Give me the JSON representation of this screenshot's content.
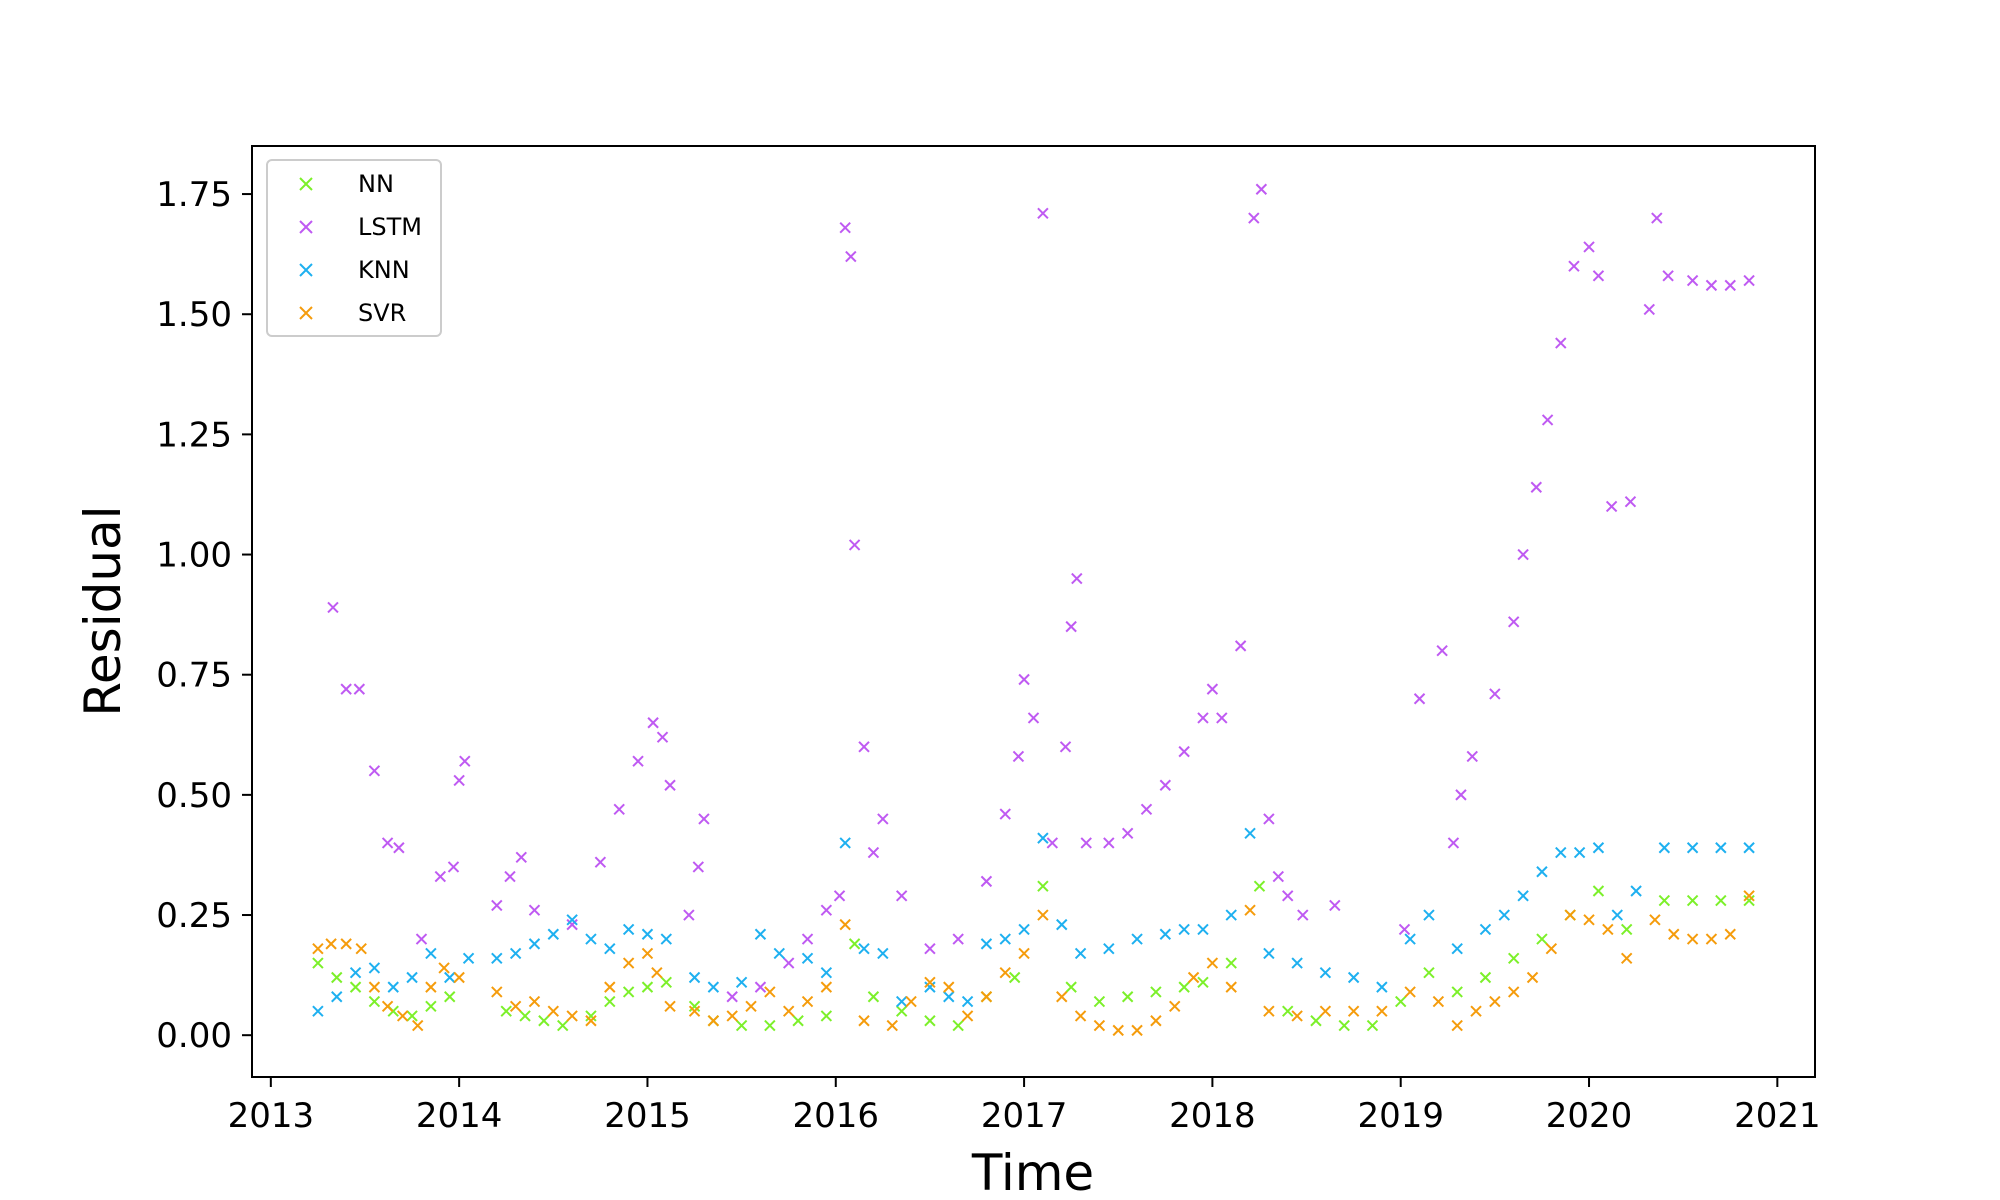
{
  "chart_data": {
    "type": "scatter",
    "title": "",
    "xlabel": "Time",
    "ylabel": "Residual",
    "xlim": [
      2012.9,
      2021.2
    ],
    "ylim": [
      -0.087,
      1.85
    ],
    "x_ticks": [
      2013,
      2014,
      2015,
      2016,
      2017,
      2018,
      2019,
      2020,
      2021
    ],
    "x_tick_labels": [
      "2013",
      "2014",
      "2015",
      "2016",
      "2017",
      "2018",
      "2019",
      "2020",
      "2021"
    ],
    "y_ticks": [
      0.0,
      0.25,
      0.5,
      0.75,
      1.0,
      1.25,
      1.5,
      1.75
    ],
    "y_tick_labels": [
      "0.00",
      "0.25",
      "0.50",
      "0.75",
      "1.00",
      "1.25",
      "1.50",
      "1.75"
    ],
    "grid": false,
    "legend_position": "top-left",
    "marker": "x",
    "series": [
      {
        "name": "NN",
        "color": "#7cf02a",
        "points": [
          [
            2013.25,
            0.15
          ],
          [
            2013.35,
            0.12
          ],
          [
            2013.45,
            0.1
          ],
          [
            2013.55,
            0.07
          ],
          [
            2013.65,
            0.05
          ],
          [
            2013.75,
            0.04
          ],
          [
            2013.85,
            0.06
          ],
          [
            2013.95,
            0.08
          ],
          [
            2014.25,
            0.05
          ],
          [
            2014.35,
            0.04
          ],
          [
            2014.45,
            0.03
          ],
          [
            2014.55,
            0.02
          ],
          [
            2014.7,
            0.04
          ],
          [
            2014.8,
            0.07
          ],
          [
            2014.9,
            0.09
          ],
          [
            2015.0,
            0.1
          ],
          [
            2015.1,
            0.11
          ],
          [
            2015.25,
            0.06
          ],
          [
            2015.35,
            0.03
          ],
          [
            2015.5,
            0.02
          ],
          [
            2015.65,
            0.02
          ],
          [
            2015.8,
            0.03
          ],
          [
            2015.95,
            0.04
          ],
          [
            2016.1,
            0.19
          ],
          [
            2016.2,
            0.08
          ],
          [
            2016.35,
            0.05
          ],
          [
            2016.5,
            0.03
          ],
          [
            2016.65,
            0.02
          ],
          [
            2016.8,
            0.08
          ],
          [
            2016.95,
            0.12
          ],
          [
            2017.1,
            0.31
          ],
          [
            2017.25,
            0.1
          ],
          [
            2017.4,
            0.07
          ],
          [
            2017.55,
            0.08
          ],
          [
            2017.7,
            0.09
          ],
          [
            2017.85,
            0.1
          ],
          [
            2017.95,
            0.11
          ],
          [
            2018.1,
            0.15
          ],
          [
            2018.25,
            0.31
          ],
          [
            2018.4,
            0.05
          ],
          [
            2018.55,
            0.03
          ],
          [
            2018.7,
            0.02
          ],
          [
            2018.85,
            0.02
          ],
          [
            2019.0,
            0.07
          ],
          [
            2019.15,
            0.13
          ],
          [
            2019.3,
            0.09
          ],
          [
            2019.45,
            0.12
          ],
          [
            2019.6,
            0.16
          ],
          [
            2019.75,
            0.2
          ],
          [
            2019.9,
            0.25
          ],
          [
            2020.05,
            0.3
          ],
          [
            2020.2,
            0.22
          ],
          [
            2020.4,
            0.28
          ],
          [
            2020.55,
            0.28
          ],
          [
            2020.7,
            0.28
          ],
          [
            2020.85,
            0.28
          ]
        ]
      },
      {
        "name": "LSTM",
        "color": "#bf5af2",
        "points": [
          [
            2013.33,
            0.89
          ],
          [
            2013.4,
            0.72
          ],
          [
            2013.47,
            0.72
          ],
          [
            2013.55,
            0.55
          ],
          [
            2013.62,
            0.4
          ],
          [
            2013.68,
            0.39
          ],
          [
            2013.8,
            0.2
          ],
          [
            2013.9,
            0.33
          ],
          [
            2013.97,
            0.35
          ],
          [
            2014.0,
            0.53
          ],
          [
            2014.03,
            0.57
          ],
          [
            2014.2,
            0.27
          ],
          [
            2014.27,
            0.33
          ],
          [
            2014.33,
            0.37
          ],
          [
            2014.4,
            0.26
          ],
          [
            2014.6,
            0.23
          ],
          [
            2014.75,
            0.36
          ],
          [
            2014.85,
            0.47
          ],
          [
            2014.95,
            0.57
          ],
          [
            2015.03,
            0.65
          ],
          [
            2015.08,
            0.62
          ],
          [
            2015.12,
            0.52
          ],
          [
            2015.22,
            0.25
          ],
          [
            2015.27,
            0.35
          ],
          [
            2015.3,
            0.45
          ],
          [
            2015.45,
            0.08
          ],
          [
            2015.6,
            0.1
          ],
          [
            2015.75,
            0.15
          ],
          [
            2015.85,
            0.2
          ],
          [
            2015.95,
            0.26
          ],
          [
            2016.02,
            0.29
          ],
          [
            2016.05,
            1.68
          ],
          [
            2016.08,
            1.62
          ],
          [
            2016.1,
            1.02
          ],
          [
            2016.15,
            0.6
          ],
          [
            2016.2,
            0.38
          ],
          [
            2016.25,
            0.45
          ],
          [
            2016.35,
            0.29
          ],
          [
            2016.5,
            0.18
          ],
          [
            2016.65,
            0.2
          ],
          [
            2016.8,
            0.32
          ],
          [
            2016.9,
            0.46
          ],
          [
            2016.97,
            0.58
          ],
          [
            2017.0,
            0.74
          ],
          [
            2017.05,
            0.66
          ],
          [
            2017.1,
            1.71
          ],
          [
            2017.15,
            0.4
          ],
          [
            2017.22,
            0.6
          ],
          [
            2017.25,
            0.85
          ],
          [
            2017.28,
            0.95
          ],
          [
            2017.33,
            0.4
          ],
          [
            2017.45,
            0.4
          ],
          [
            2017.55,
            0.42
          ],
          [
            2017.65,
            0.47
          ],
          [
            2017.75,
            0.52
          ],
          [
            2017.85,
            0.59
          ],
          [
            2017.95,
            0.66
          ],
          [
            2018.0,
            0.72
          ],
          [
            2018.05,
            0.66
          ],
          [
            2018.15,
            0.81
          ],
          [
            2018.22,
            1.7
          ],
          [
            2018.26,
            1.76
          ],
          [
            2018.3,
            0.45
          ],
          [
            2018.35,
            0.33
          ],
          [
            2018.4,
            0.29
          ],
          [
            2018.48,
            0.25
          ],
          [
            2018.65,
            0.27
          ],
          [
            2019.02,
            0.22
          ],
          [
            2019.1,
            0.7
          ],
          [
            2019.22,
            0.8
          ],
          [
            2019.28,
            0.4
          ],
          [
            2019.32,
            0.5
          ],
          [
            2019.38,
            0.58
          ],
          [
            2019.5,
            0.71
          ],
          [
            2019.6,
            0.86
          ],
          [
            2019.65,
            1.0
          ],
          [
            2019.72,
            1.14
          ],
          [
            2019.78,
            1.28
          ],
          [
            2019.85,
            1.44
          ],
          [
            2019.92,
            1.6
          ],
          [
            2020.0,
            1.64
          ],
          [
            2020.05,
            1.58
          ],
          [
            2020.12,
            1.1
          ],
          [
            2020.22,
            1.11
          ],
          [
            2020.32,
            1.51
          ],
          [
            2020.36,
            1.7
          ],
          [
            2020.42,
            1.58
          ],
          [
            2020.55,
            1.57
          ],
          [
            2020.65,
            1.56
          ],
          [
            2020.75,
            1.56
          ],
          [
            2020.85,
            1.57
          ]
        ]
      },
      {
        "name": "KNN",
        "color": "#1eb0f0",
        "points": [
          [
            2013.25,
            0.05
          ],
          [
            2013.35,
            0.08
          ],
          [
            2013.45,
            0.13
          ],
          [
            2013.55,
            0.14
          ],
          [
            2013.65,
            0.1
          ],
          [
            2013.75,
            0.12
          ],
          [
            2013.85,
            0.17
          ],
          [
            2013.95,
            0.12
          ],
          [
            2014.05,
            0.16
          ],
          [
            2014.2,
            0.16
          ],
          [
            2014.3,
            0.17
          ],
          [
            2014.4,
            0.19
          ],
          [
            2014.5,
            0.21
          ],
          [
            2014.6,
            0.24
          ],
          [
            2014.7,
            0.2
          ],
          [
            2014.8,
            0.18
          ],
          [
            2014.9,
            0.22
          ],
          [
            2015.0,
            0.21
          ],
          [
            2015.1,
            0.2
          ],
          [
            2015.25,
            0.12
          ],
          [
            2015.35,
            0.1
          ],
          [
            2015.5,
            0.11
          ],
          [
            2015.6,
            0.21
          ],
          [
            2015.7,
            0.17
          ],
          [
            2015.85,
            0.16
          ],
          [
            2015.95,
            0.13
          ],
          [
            2016.05,
            0.4
          ],
          [
            2016.15,
            0.18
          ],
          [
            2016.25,
            0.17
          ],
          [
            2016.35,
            0.07
          ],
          [
            2016.5,
            0.1
          ],
          [
            2016.6,
            0.08
          ],
          [
            2016.7,
            0.07
          ],
          [
            2016.8,
            0.19
          ],
          [
            2016.9,
            0.2
          ],
          [
            2017.0,
            0.22
          ],
          [
            2017.1,
            0.41
          ],
          [
            2017.2,
            0.23
          ],
          [
            2017.3,
            0.17
          ],
          [
            2017.45,
            0.18
          ],
          [
            2017.6,
            0.2
          ],
          [
            2017.75,
            0.21
          ],
          [
            2017.85,
            0.22
          ],
          [
            2017.95,
            0.22
          ],
          [
            2018.1,
            0.25
          ],
          [
            2018.2,
            0.42
          ],
          [
            2018.3,
            0.17
          ],
          [
            2018.45,
            0.15
          ],
          [
            2018.6,
            0.13
          ],
          [
            2018.75,
            0.12
          ],
          [
            2018.9,
            0.1
          ],
          [
            2019.05,
            0.2
          ],
          [
            2019.15,
            0.25
          ],
          [
            2019.3,
            0.18
          ],
          [
            2019.45,
            0.22
          ],
          [
            2019.55,
            0.25
          ],
          [
            2019.65,
            0.29
          ],
          [
            2019.75,
            0.34
          ],
          [
            2019.85,
            0.38
          ],
          [
            2019.95,
            0.38
          ],
          [
            2020.05,
            0.39
          ],
          [
            2020.15,
            0.25
          ],
          [
            2020.25,
            0.3
          ],
          [
            2020.4,
            0.39
          ],
          [
            2020.55,
            0.39
          ],
          [
            2020.7,
            0.39
          ],
          [
            2020.85,
            0.39
          ]
        ]
      },
      {
        "name": "SVR",
        "color": "#f59c0c",
        "points": [
          [
            2013.25,
            0.18
          ],
          [
            2013.32,
            0.19
          ],
          [
            2013.4,
            0.19
          ],
          [
            2013.48,
            0.18
          ],
          [
            2013.55,
            0.1
          ],
          [
            2013.62,
            0.06
          ],
          [
            2013.7,
            0.04
          ],
          [
            2013.78,
            0.02
          ],
          [
            2013.85,
            0.1
          ],
          [
            2013.92,
            0.14
          ],
          [
            2014.0,
            0.12
          ],
          [
            2014.2,
            0.09
          ],
          [
            2014.3,
            0.06
          ],
          [
            2014.4,
            0.07
          ],
          [
            2014.5,
            0.05
          ],
          [
            2014.6,
            0.04
          ],
          [
            2014.7,
            0.03
          ],
          [
            2014.8,
            0.1
          ],
          [
            2014.9,
            0.15
          ],
          [
            2015.0,
            0.17
          ],
          [
            2015.05,
            0.13
          ],
          [
            2015.12,
            0.06
          ],
          [
            2015.25,
            0.05
          ],
          [
            2015.35,
            0.03
          ],
          [
            2015.45,
            0.04
          ],
          [
            2015.55,
            0.06
          ],
          [
            2015.65,
            0.09
          ],
          [
            2015.75,
            0.05
          ],
          [
            2015.85,
            0.07
          ],
          [
            2015.95,
            0.1
          ],
          [
            2016.05,
            0.23
          ],
          [
            2016.15,
            0.03
          ],
          [
            2016.3,
            0.02
          ],
          [
            2016.4,
            0.07
          ],
          [
            2016.5,
            0.11
          ],
          [
            2016.6,
            0.1
          ],
          [
            2016.7,
            0.04
          ],
          [
            2016.8,
            0.08
          ],
          [
            2016.9,
            0.13
          ],
          [
            2017.0,
            0.17
          ],
          [
            2017.1,
            0.25
          ],
          [
            2017.2,
            0.08
          ],
          [
            2017.3,
            0.04
          ],
          [
            2017.4,
            0.02
          ],
          [
            2017.5,
            0.01
          ],
          [
            2017.6,
            0.01
          ],
          [
            2017.7,
            0.03
          ],
          [
            2017.8,
            0.06
          ],
          [
            2017.9,
            0.12
          ],
          [
            2018.0,
            0.15
          ],
          [
            2018.1,
            0.1
          ],
          [
            2018.2,
            0.26
          ],
          [
            2018.3,
            0.05
          ],
          [
            2018.45,
            0.04
          ],
          [
            2018.6,
            0.05
          ],
          [
            2018.75,
            0.05
          ],
          [
            2018.9,
            0.05
          ],
          [
            2019.05,
            0.09
          ],
          [
            2019.2,
            0.07
          ],
          [
            2019.3,
            0.02
          ],
          [
            2019.4,
            0.05
          ],
          [
            2019.5,
            0.07
          ],
          [
            2019.6,
            0.09
          ],
          [
            2019.7,
            0.12
          ],
          [
            2019.8,
            0.18
          ],
          [
            2019.9,
            0.25
          ],
          [
            2020.0,
            0.24
          ],
          [
            2020.1,
            0.22
          ],
          [
            2020.2,
            0.16
          ],
          [
            2020.35,
            0.24
          ],
          [
            2020.45,
            0.21
          ],
          [
            2020.55,
            0.2
          ],
          [
            2020.65,
            0.2
          ],
          [
            2020.75,
            0.21
          ],
          [
            2020.85,
            0.29
          ]
        ]
      }
    ]
  }
}
